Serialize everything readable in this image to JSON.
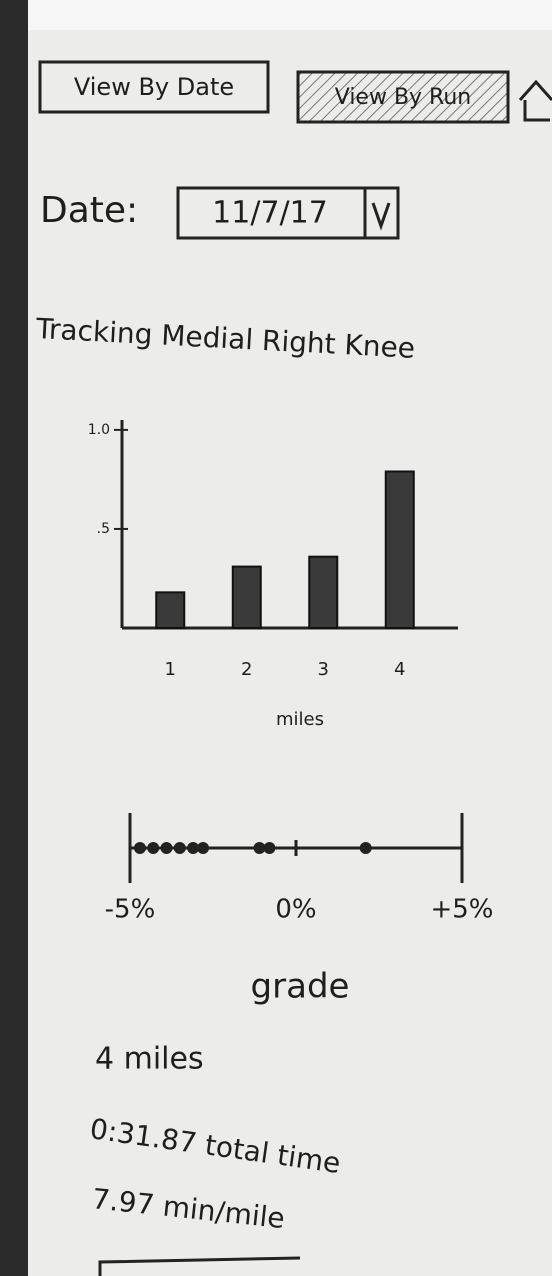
{
  "buttons": [
    "View By Date",
    "View By Run"
  ],
  "date_label": "Date:",
  "date_value": "11/7/17",
  "heading": "Tracking Medial Right Knee",
  "chart_data": [
    {
      "type": "bar",
      "categories": [
        "1",
        "2",
        "3",
        "4"
      ],
      "values": [
        0.18,
        0.31,
        0.36,
        0.79
      ],
      "x_label": "miles",
      "color": "#3a3a3a",
      "ylim": [
        0,
        1.05
      ],
      "yticks": [
        {
          "value": 0.5,
          "label": ".5"
        },
        {
          "value": 1.0,
          "label": "1.0"
        }
      ]
    },
    {
      "type": "strip",
      "values": [
        -4.7,
        -4.3,
        -3.9,
        -3.5,
        -3.1,
        -2.8,
        -1.1,
        -0.8,
        2.1
      ],
      "x_label": "grade",
      "color": "#222222",
      "xlim": [
        -5,
        5
      ],
      "xticks": [
        {
          "value": -5,
          "label": "-5%"
        },
        {
          "value": 0,
          "label": "0%"
        },
        {
          "value": 5,
          "label": "+5%"
        }
      ]
    }
  ],
  "summary": [
    "4 miles",
    "0:31.87 total time",
    "7.97 min/mile"
  ]
}
